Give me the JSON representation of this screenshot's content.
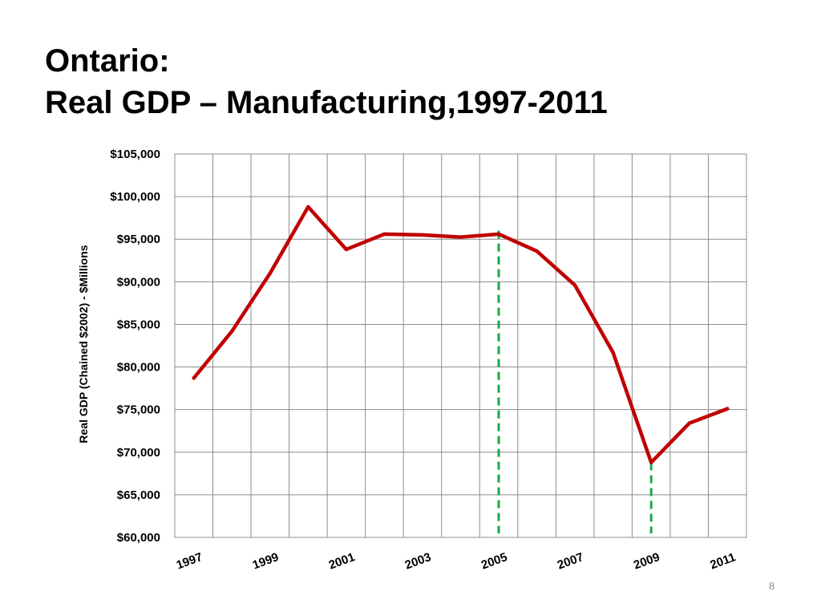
{
  "slide": {
    "title_line1": "Ontario:",
    "title_line2": "Real GDP – Manufacturing,1997-2011",
    "page_number": "8"
  },
  "chart_data": {
    "type": "line",
    "ylabel": "Real GDP (Chained $2002) - $Millions",
    "xlabel": "",
    "x": [
      1997,
      1998,
      1999,
      2000,
      2001,
      2002,
      2003,
      2004,
      2005,
      2006,
      2007,
      2008,
      2009,
      2010,
      2011
    ],
    "series": [
      {
        "values": [
          78700,
          84200,
          91000,
          98800,
          93800,
          95600,
          95500,
          95250,
          95600,
          93600,
          89600,
          81700,
          68800,
          73400,
          75100
        ],
        "color": "#c00000"
      }
    ],
    "x_tick_labels": [
      "1997",
      "1999",
      "2001",
      "2003",
      "2005",
      "2007",
      "2009",
      "2011"
    ],
    "x_tick_values": [
      1997,
      1999,
      2001,
      2003,
      2005,
      2007,
      2009,
      2011
    ],
    "y_tick_labels": [
      "$60,000",
      "$65,000",
      "$70,000",
      "$75,000",
      "$80,000",
      "$85,000",
      "$90,000",
      "$95,000",
      "$100,000",
      "$105,000"
    ],
    "ylim": [
      60000,
      105000
    ],
    "grid": true,
    "legend": "none",
    "annotations": [
      {
        "type": "vertical-dashed-line",
        "x": 2005,
        "y_top": 96000,
        "color": "#1aa84a"
      },
      {
        "type": "vertical-dashed-line",
        "x": 2009,
        "y_top": 68800,
        "color": "#1aa84a"
      }
    ]
  }
}
